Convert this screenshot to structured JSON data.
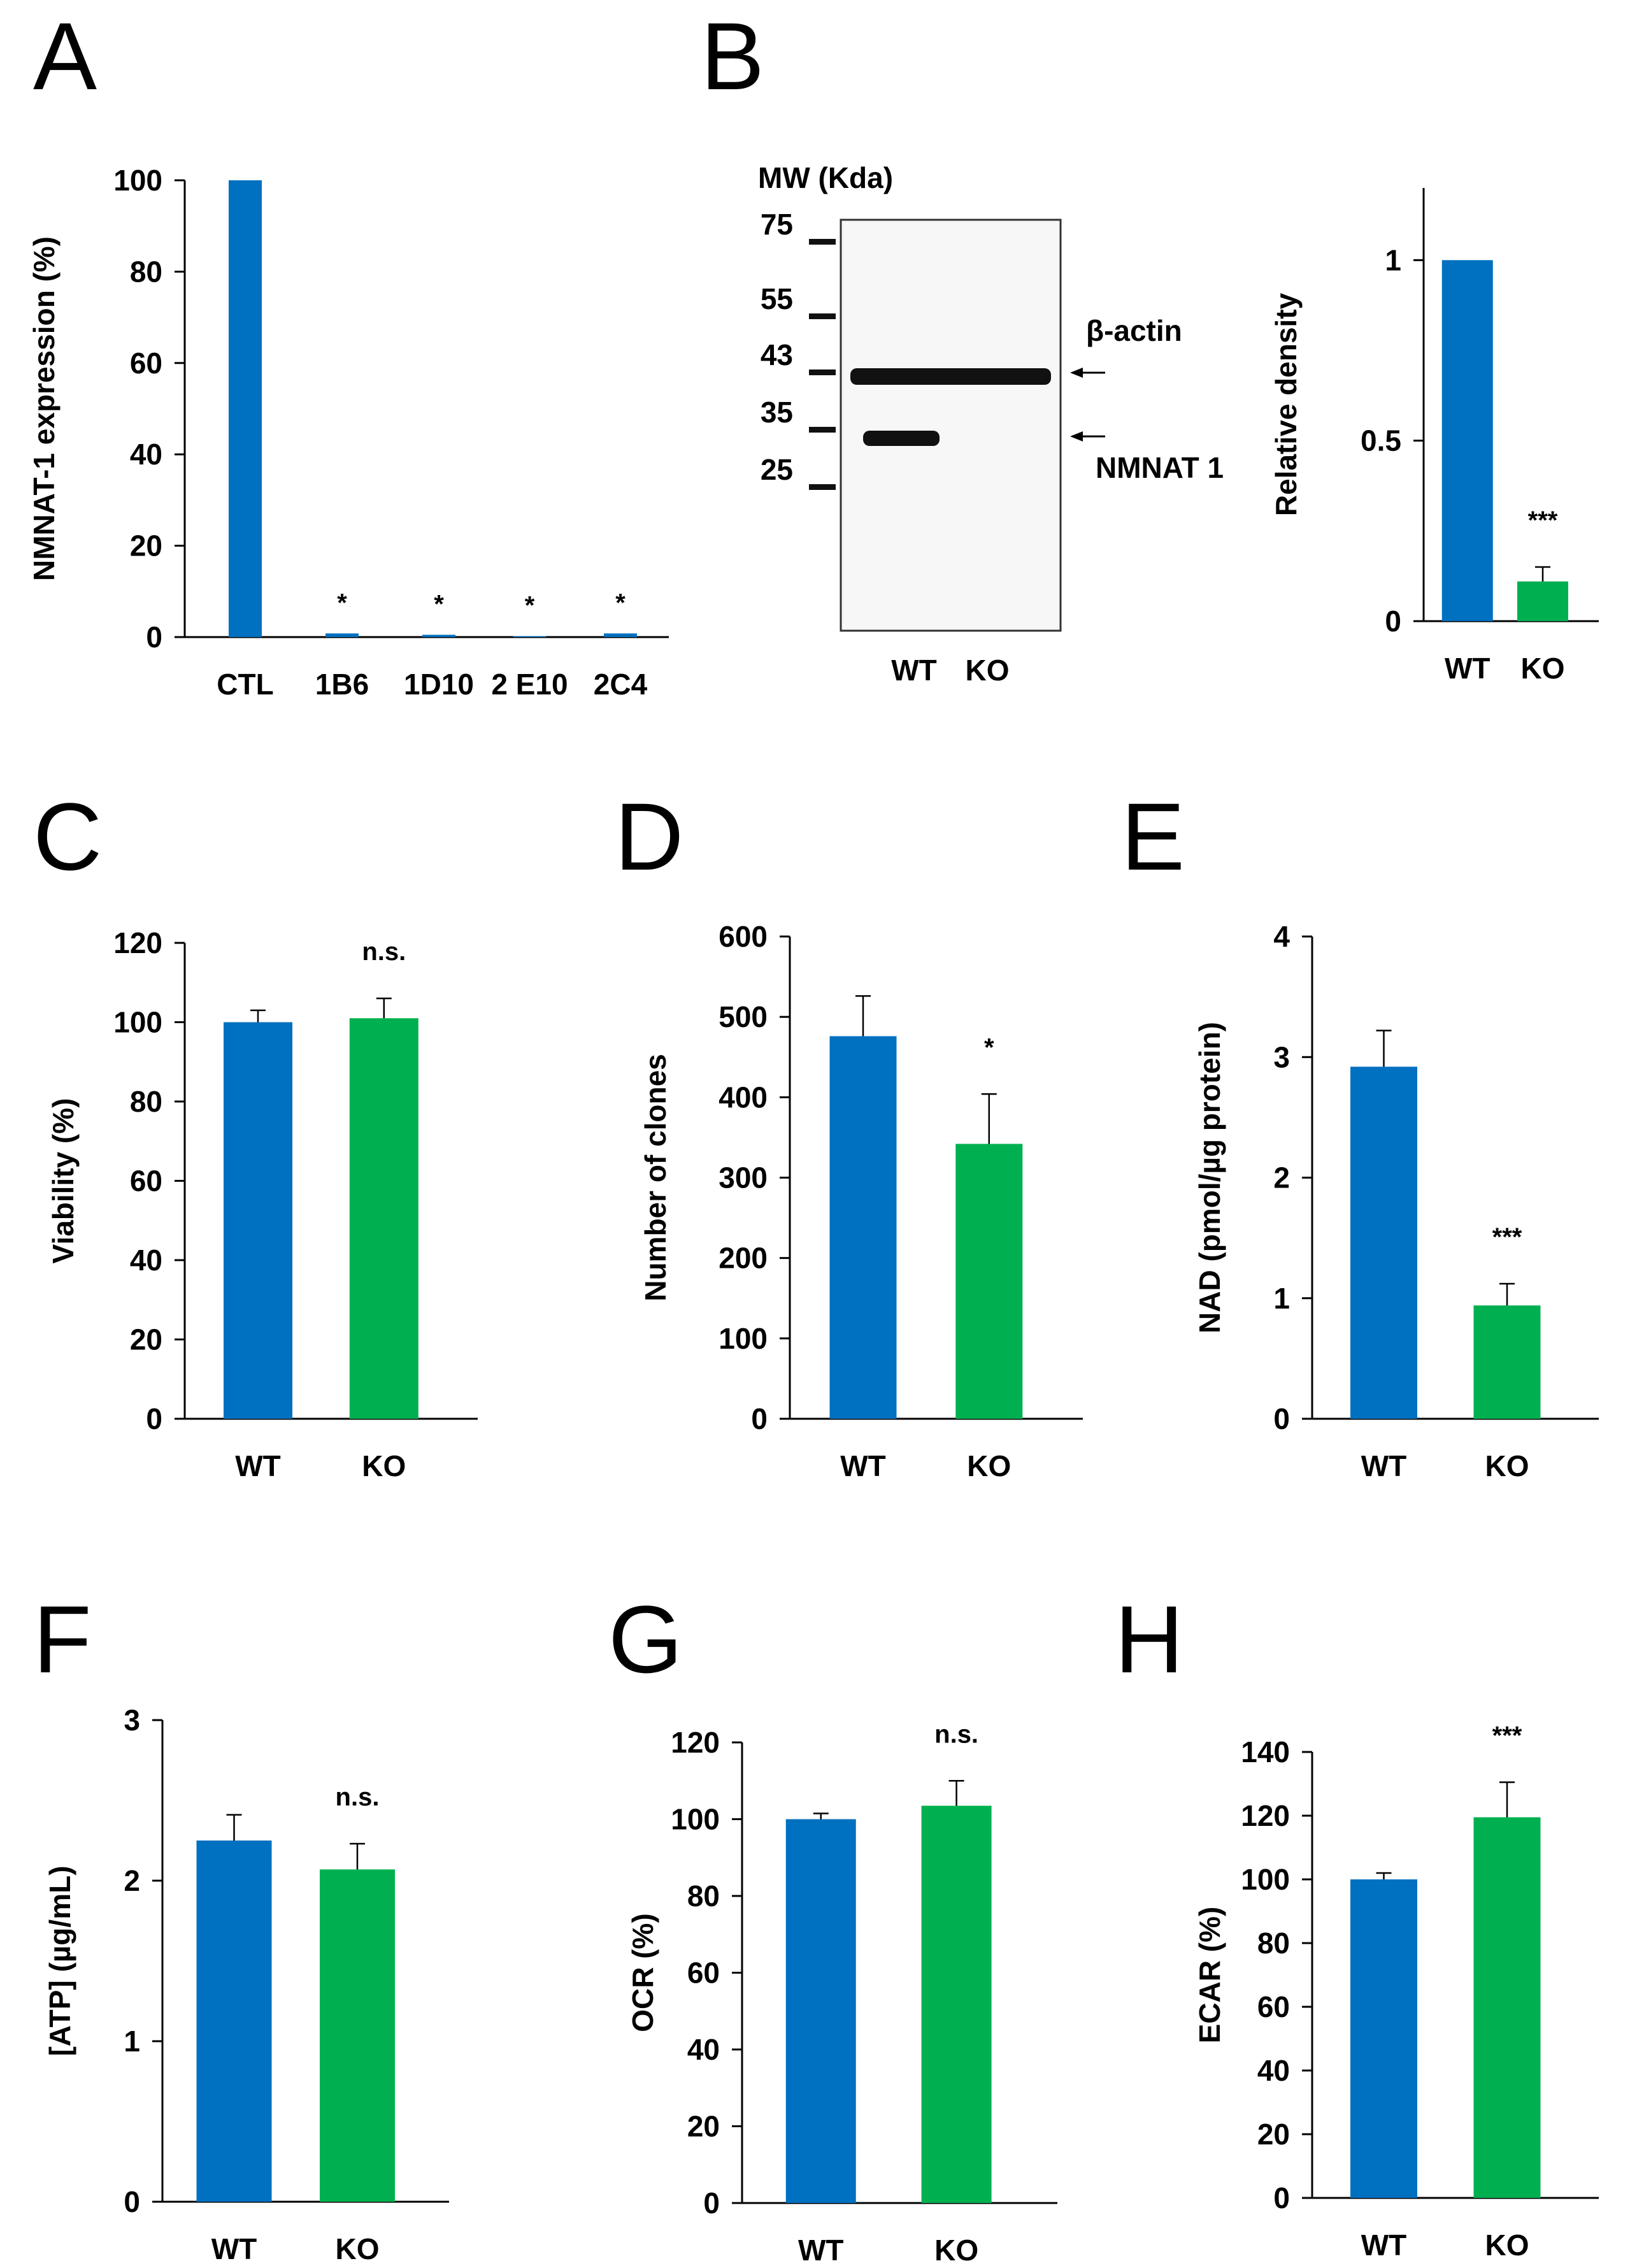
{
  "colors": {
    "wt": "#0070C0",
    "ko": "#00B050",
    "axis": "#000000"
  },
  "chart_data": [
    {
      "id": "A",
      "type": "bar",
      "panel": "A",
      "ylabel": "NMNAT-1  expression (%)",
      "ylim": [
        0,
        100
      ],
      "yticks": [
        0,
        20,
        40,
        60,
        80,
        100
      ],
      "categories": [
        "CTL",
        "1B6",
        "1D10",
        "2 E10",
        "2C4"
      ],
      "values": [
        100,
        0.8,
        0.5,
        0.2,
        0.8
      ],
      "errors": [
        0,
        0,
        0,
        0,
        0
      ],
      "annotations": [
        "",
        "*",
        "*",
        "*",
        "*"
      ]
    },
    {
      "id": "B",
      "type": "bar",
      "panel": "",
      "ylabel": "Relative density",
      "ylim": [
        0,
        1.2
      ],
      "yticks": [
        0,
        0.5,
        1
      ],
      "categories": [
        "WT",
        "KO"
      ],
      "values": [
        1.0,
        0.11
      ],
      "errors": [
        0,
        0.04
      ],
      "annotations": [
        "",
        "***"
      ]
    },
    {
      "id": "C",
      "type": "bar",
      "panel": "C",
      "ylabel": "Viability (%)",
      "ylim": [
        0,
        120
      ],
      "yticks": [
        0,
        20,
        40,
        60,
        80,
        100,
        120
      ],
      "categories": [
        "WT",
        "KO"
      ],
      "values": [
        100,
        101
      ],
      "errors": [
        3,
        5
      ],
      "annotations": [
        "",
        "n.s."
      ]
    },
    {
      "id": "D",
      "type": "bar",
      "panel": "D",
      "ylabel": "Number of clones",
      "ylim": [
        0,
        600
      ],
      "yticks": [
        0,
        100,
        200,
        300,
        400,
        500,
        600
      ],
      "categories": [
        "WT",
        "KO"
      ],
      "values": [
        476,
        342
      ],
      "errors": [
        50,
        62
      ],
      "annotations": [
        "",
        "*"
      ]
    },
    {
      "id": "E",
      "type": "bar",
      "panel": "E",
      "ylabel": "NAD  (pmol/µg protein)",
      "ylim": [
        0,
        4
      ],
      "yticks": [
        0,
        1,
        2,
        3,
        4
      ],
      "categories": [
        "WT",
        "KO"
      ],
      "values": [
        2.92,
        0.94
      ],
      "errors": [
        0.3,
        0.18
      ],
      "annotations": [
        "",
        "***"
      ]
    },
    {
      "id": "F",
      "type": "bar",
      "panel": "F",
      "ylabel": "[ATP] (µg/mL)",
      "ylim": [
        0,
        3
      ],
      "yticks": [
        0,
        1,
        2,
        3
      ],
      "categories": [
        "WT",
        "KO"
      ],
      "values": [
        2.25,
        2.07
      ],
      "errors": [
        0.16,
        0.16
      ],
      "annotations": [
        "",
        "n.s."
      ]
    },
    {
      "id": "G",
      "type": "bar",
      "panel": "G",
      "ylabel": "OCR (%)",
      "ylim": [
        0,
        120
      ],
      "yticks": [
        0,
        20,
        40,
        60,
        80,
        100,
        120
      ],
      "categories": [
        "WT",
        "KO"
      ],
      "values": [
        100,
        103.5
      ],
      "errors": [
        1.5,
        6.5
      ],
      "annotations": [
        "",
        "n.s."
      ]
    },
    {
      "id": "H",
      "type": "bar",
      "panel": "H",
      "ylabel": "ECAR (%)",
      "ylim": [
        0,
        140
      ],
      "yticks": [
        0,
        20,
        40,
        60,
        80,
        100,
        120,
        140
      ],
      "categories": [
        "WT",
        "KO"
      ],
      "values": [
        100,
        119.5
      ],
      "errors": [
        2,
        11
      ],
      "annotations": [
        "",
        "***"
      ]
    }
  ],
  "blot": {
    "panel": "B",
    "title": "MW (Kda)",
    "markers": [
      "75",
      "55",
      "43",
      "35",
      "25"
    ],
    "bands": [
      "β-actin",
      "NMNAT 1"
    ],
    "lanes": [
      "WT",
      "KO"
    ]
  }
}
